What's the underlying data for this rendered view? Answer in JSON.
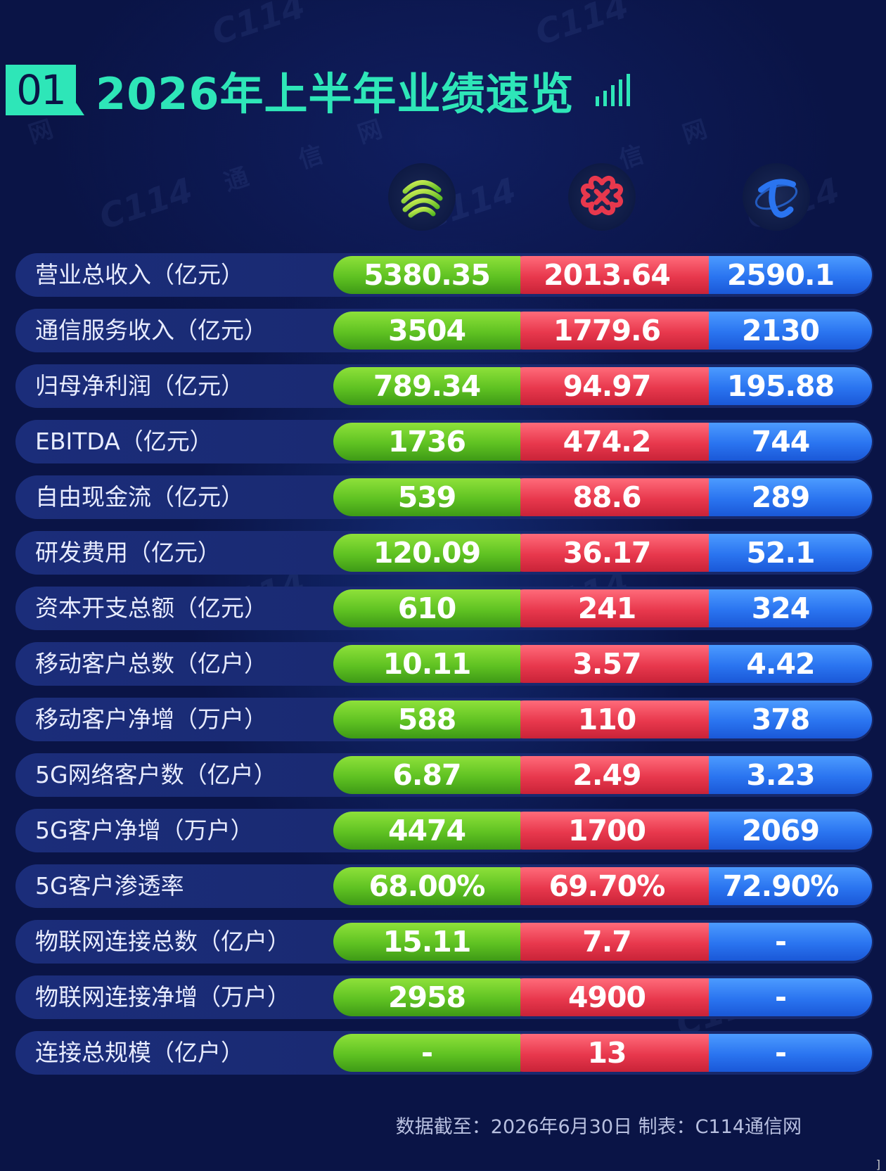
{
  "header": {
    "badge": "01",
    "title": "2026年上半年业绩速览"
  },
  "watermark": {
    "brand": "C114",
    "chars": [
      "通",
      "信",
      "网"
    ]
  },
  "operators": [
    {
      "key": "mobile",
      "icon": "china-mobile-logo-icon",
      "color": "#5fc222"
    },
    {
      "key": "unicom",
      "icon": "china-unicom-logo-icon",
      "color": "#e8384d"
    },
    {
      "key": "telecom",
      "icon": "china-telecom-logo-icon",
      "color": "#2a74f0"
    }
  ],
  "rows": [
    {
      "label": "营业总收入（亿元）",
      "values": [
        "5380.35",
        "2013.64",
        "2590.1"
      ]
    },
    {
      "label": "通信服务收入（亿元）",
      "values": [
        "3504",
        "1779.6",
        "2130"
      ]
    },
    {
      "label": "归母净利润（亿元）",
      "values": [
        "789.34",
        "94.97",
        "195.88"
      ]
    },
    {
      "label": "EBITDA（亿元）",
      "values": [
        "1736",
        "474.2",
        "744"
      ]
    },
    {
      "label": "自由现金流（亿元）",
      "values": [
        "539",
        "88.6",
        "289"
      ]
    },
    {
      "label": "研发费用（亿元）",
      "values": [
        "120.09",
        "36.17",
        "52.1"
      ]
    },
    {
      "label": "资本开支总额（亿元）",
      "values": [
        "610",
        "241",
        "324"
      ]
    },
    {
      "label": "移动客户总数（亿户）",
      "values": [
        "10.11",
        "3.57",
        "4.42"
      ]
    },
    {
      "label": "移动客户净增（万户）",
      "values": [
        "588",
        "110",
        "378"
      ]
    },
    {
      "label": "5G网络客户数（亿户）",
      "values": [
        "6.87",
        "2.49",
        "3.23"
      ]
    },
    {
      "label": "5G客户净增（万户）",
      "values": [
        "4474",
        "1700",
        "2069"
      ]
    },
    {
      "label": "5G客户渗透率",
      "values": [
        "68.00%",
        "69.70%",
        "72.90%"
      ]
    },
    {
      "label": "物联网连接总数（亿户）",
      "values": [
        "15.11",
        "7.7",
        "-"
      ]
    },
    {
      "label": "物联网连接净增（万户）",
      "values": [
        "2958",
        "4900",
        "-"
      ]
    },
    {
      "label": "连接总规模（亿户）",
      "values": [
        "-",
        "13",
        "-"
      ]
    }
  ],
  "footer": {
    "text": "数据截至：2026年6月30日  制表：C114通信网",
    "corner": "]"
  }
}
